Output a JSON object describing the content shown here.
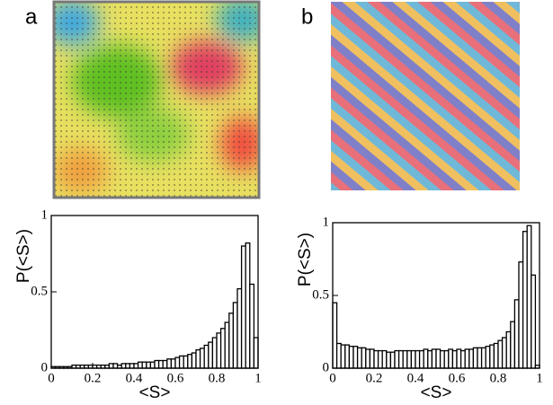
{
  "panel_labels": [
    "a",
    "b"
  ],
  "chart_data": [
    {
      "type": "histogram",
      "xlabel": "<S>",
      "ylabel": "P(<S>)",
      "bins": [
        0,
        0.02,
        0.04,
        0.06,
        0.08,
        0.1,
        0.12,
        0.14,
        0.16,
        0.18,
        0.2,
        0.22,
        0.24,
        0.26,
        0.28,
        0.3,
        0.32,
        0.34,
        0.36,
        0.38,
        0.4,
        0.42,
        0.44,
        0.46,
        0.48,
        0.5,
        0.52,
        0.54,
        0.56,
        0.58,
        0.6,
        0.62,
        0.64,
        0.66,
        0.68,
        0.7,
        0.72,
        0.74,
        0.76,
        0.78,
        0.8,
        0.82,
        0.84,
        0.86,
        0.88,
        0.9,
        0.92,
        0.94,
        0.96,
        0.98,
        1
      ],
      "values": [
        0.01,
        0.01,
        0.01,
        0.01,
        0.01,
        0.02,
        0.02,
        0.02,
        0.02,
        0.02,
        0.02,
        0.02,
        0.02,
        0.02,
        0.03,
        0.03,
        0.02,
        0.03,
        0.03,
        0.03,
        0.03,
        0.04,
        0.04,
        0.04,
        0.04,
        0.05,
        0.05,
        0.05,
        0.06,
        0.06,
        0.07,
        0.08,
        0.08,
        0.09,
        0.1,
        0.12,
        0.13,
        0.15,
        0.17,
        0.2,
        0.23,
        0.26,
        0.3,
        0.36,
        0.43,
        0.52,
        0.8,
        0.82,
        0.55,
        0.2
      ],
      "color": "#ffffff",
      "xlim": [
        0,
        1
      ],
      "ylim": [
        0,
        1
      ],
      "xticks": [
        0,
        0.2,
        0.4,
        0.6,
        0.8,
        1
      ],
      "yticks": [
        0,
        0.5,
        1
      ]
    },
    {
      "type": "histogram",
      "xlabel": "<S>",
      "ylabel": "P(<S>)",
      "bins": [
        0,
        0.02,
        0.04,
        0.06,
        0.08,
        0.1,
        0.12,
        0.14,
        0.16,
        0.18,
        0.2,
        0.22,
        0.24,
        0.26,
        0.28,
        0.3,
        0.32,
        0.34,
        0.36,
        0.38,
        0.4,
        0.42,
        0.44,
        0.46,
        0.48,
        0.5,
        0.52,
        0.54,
        0.56,
        0.58,
        0.6,
        0.62,
        0.64,
        0.66,
        0.68,
        0.7,
        0.72,
        0.74,
        0.76,
        0.78,
        0.8,
        0.82,
        0.84,
        0.86,
        0.88,
        0.9,
        0.92,
        0.94,
        0.96,
        0.98,
        1
      ],
      "values": [
        0.45,
        0.17,
        0.16,
        0.16,
        0.15,
        0.15,
        0.14,
        0.14,
        0.13,
        0.13,
        0.12,
        0.12,
        0.12,
        0.11,
        0.11,
        0.12,
        0.12,
        0.12,
        0.12,
        0.12,
        0.12,
        0.12,
        0.13,
        0.12,
        0.13,
        0.13,
        0.12,
        0.12,
        0.13,
        0.12,
        0.13,
        0.12,
        0.13,
        0.13,
        0.14,
        0.14,
        0.14,
        0.15,
        0.16,
        0.17,
        0.19,
        0.21,
        0.25,
        0.32,
        0.47,
        0.73,
        0.94,
        0.98,
        0.64,
        0.02
      ],
      "color": "#ffffff",
      "xlim": [
        0,
        1
      ],
      "ylim": [
        0,
        1
      ],
      "xticks": [
        0,
        0.2,
        0.4,
        0.6,
        0.8,
        1
      ],
      "yticks": [
        0,
        0.5,
        1
      ]
    }
  ]
}
